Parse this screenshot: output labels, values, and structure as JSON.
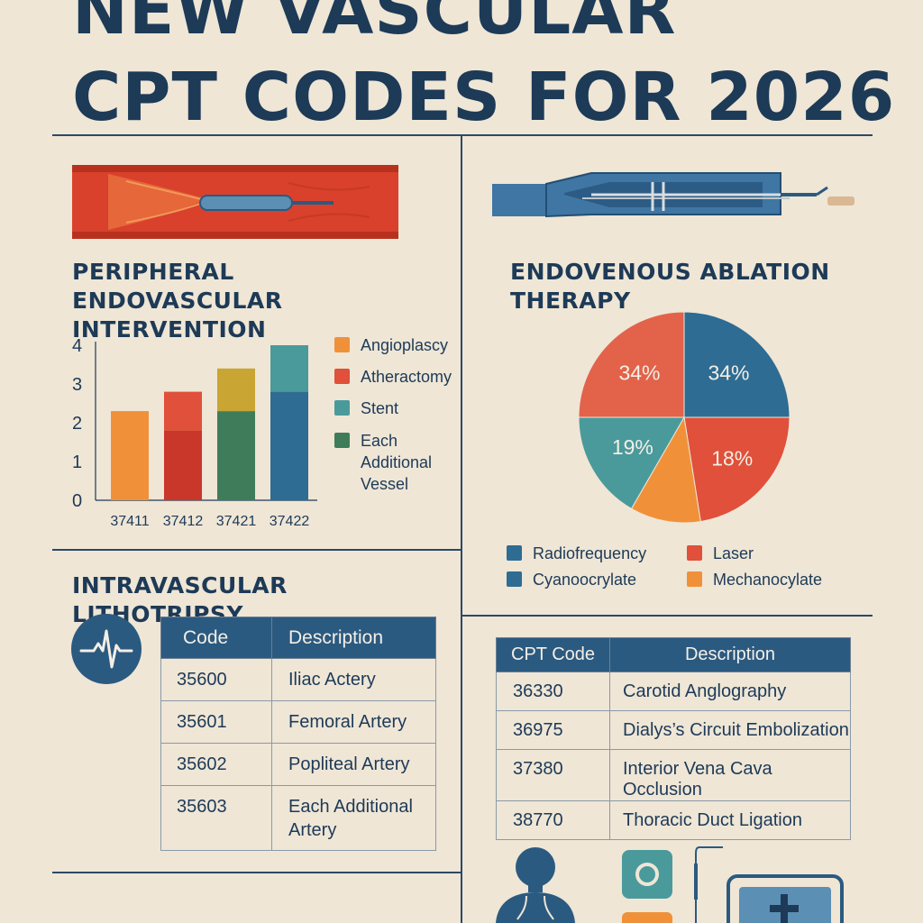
{
  "title": {
    "line1": "NEW VASCULAR",
    "line2": "CPT CODES FOR 2026"
  },
  "peripheral": {
    "title_line1": "PERIPHERAL ENDOVASCULAR",
    "title_line2": "INTERVENTION",
    "legend": [
      "Angioplascy",
      "Atheractomy",
      "Stent",
      "Each Additional Vessel"
    ]
  },
  "endovenous": {
    "title_line1": "ENDOVENOUS ABLATION",
    "title_line2": "THERAPY",
    "legend": [
      "Radiofrequency",
      "Laser",
      "Cyanoocrylate",
      "Mechanocylate"
    ]
  },
  "lithotripsy": {
    "title": "INTRAVASCULAR LITHOTRIPSY",
    "headers": [
      "Code",
      "Description"
    ],
    "rows": [
      [
        "35600",
        "Iliac Actery"
      ],
      [
        "35601",
        "Femoral Artery"
      ],
      [
        "35602",
        "Popliteal Artery"
      ],
      [
        "35603",
        "Each Additional Artery"
      ]
    ]
  },
  "other": {
    "headers": [
      "CPT Code",
      "Description"
    ],
    "rows": [
      [
        "36330",
        "Carotid Anglography"
      ],
      [
        "36975",
        "Dialys’s Circuit Embolization"
      ],
      [
        "37380",
        "Interior Vena Cava Occlusion"
      ],
      [
        "38770",
        "Thoracic Duct Ligation"
      ]
    ]
  },
  "colors": {
    "orange": "#f0913a",
    "red": "#e0503a",
    "teal": "#4a9a9c",
    "green": "#3f7d5a",
    "blue": "#2e6c93",
    "mustard": "#c9a534",
    "navy": "#1d3a57"
  },
  "chart_data": [
    {
      "type": "bar",
      "categories": [
        "37411",
        "37412",
        "37421",
        "37422"
      ],
      "ylim": [
        0,
        4
      ],
      "yticks": [
        0,
        1,
        2,
        3,
        4
      ],
      "series": [
        {
          "name": "Angioplascy",
          "values": [
            2.3,
            0,
            0,
            0
          ]
        },
        {
          "name": "Atheractomy",
          "values": [
            0,
            1.8,
            0,
            0
          ]
        },
        {
          "name": "Stent",
          "values": [
            0,
            0,
            2.3,
            2.8
          ]
        },
        {
          "name": "Each Additional Vessel",
          "values": [
            0,
            1.0,
            1.1,
            1.2
          ]
        }
      ],
      "legend_position": "right"
    },
    {
      "type": "pie",
      "labels": [
        "Radiofrequency",
        "Laser",
        "Mechanocylate",
        "Cyanoocrylate"
      ],
      "values": [
        34,
        18,
        15,
        19
      ],
      "data_labels": [
        "34%",
        "18%",
        "",
        "19%"
      ],
      "extra_label": "34%",
      "legend_position": "bottom"
    }
  ]
}
